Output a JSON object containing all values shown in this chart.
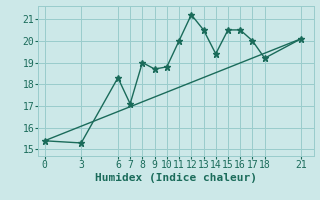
{
  "xlabel": "Humidex (Indice chaleur)",
  "bg_color": "#cce8e8",
  "grid_color": "#99cccc",
  "line_color": "#1a6b5a",
  "x_data": [
    0,
    3,
    6,
    7,
    8,
    9,
    10,
    11,
    12,
    13,
    14,
    15,
    16,
    17,
    18,
    21
  ],
  "y_data": [
    15.4,
    15.3,
    18.3,
    17.1,
    19.0,
    18.7,
    18.8,
    20.0,
    21.2,
    20.5,
    19.4,
    20.5,
    20.5,
    20.0,
    19.2,
    20.1
  ],
  "trend_x": [
    0,
    21
  ],
  "trend_y": [
    15.4,
    20.1
  ],
  "ylim": [
    14.7,
    21.6
  ],
  "xlim": [
    -0.5,
    22.0
  ],
  "yticks": [
    15,
    16,
    17,
    18,
    19,
    20,
    21
  ],
  "xticks": [
    0,
    3,
    6,
    7,
    8,
    9,
    10,
    11,
    12,
    13,
    14,
    15,
    16,
    17,
    18,
    21
  ],
  "marker": "*",
  "marker_size": 5,
  "tick_fontsize": 7,
  "xlabel_fontsize": 8
}
